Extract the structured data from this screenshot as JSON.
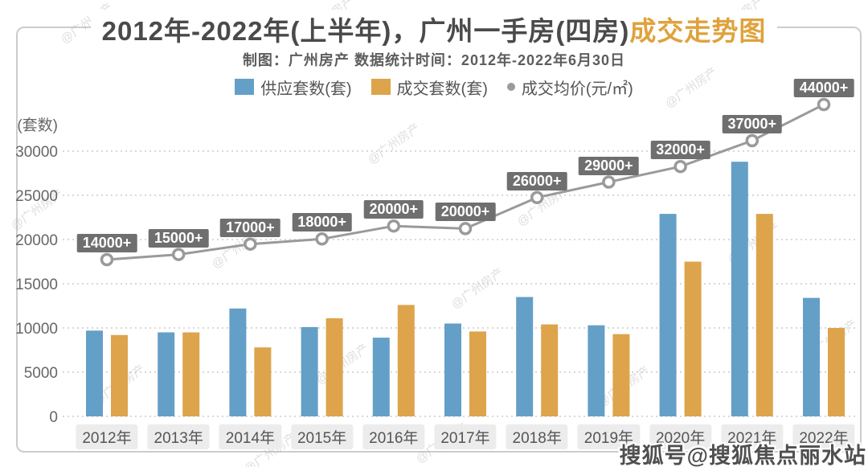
{
  "title": {
    "main": "2012年-2022年(上半年)，广州一手房(四房)",
    "accent": "成交走势图"
  },
  "subtitle": "制图：广州房产   数据统计时间：2012年-2022年6月30日",
  "legend": [
    {
      "label": "供应套数(套)",
      "type": "square",
      "color": "#649fc7"
    },
    {
      "label": "成交套数(套)",
      "type": "square",
      "color": "#dda44c"
    },
    {
      "label": "成交均价(元/㎡)",
      "type": "ring",
      "color": "#9a9a9a"
    }
  ],
  "y_axis": {
    "unit": "(套数)",
    "ticks": [
      30000,
      25000,
      20000,
      15000,
      10000,
      5000,
      0
    ]
  },
  "chart_data": {
    "type": "bar+line",
    "title": "2012年-2022年(上半年)，广州一手房(四房)成交走势图",
    "categories": [
      "2012年",
      "2013年",
      "2014年",
      "2015年",
      "2016年",
      "2017年",
      "2018年",
      "2019年",
      "2020年",
      "2021年",
      "2022年"
    ],
    "series": [
      {
        "name": "供应套数(套)",
        "type": "bar",
        "color": "#649fc7",
        "values": [
          9700,
          9500,
          12200,
          10100,
          8900,
          10500,
          13500,
          10300,
          22900,
          28800,
          13400
        ]
      },
      {
        "name": "成交套数(套)",
        "type": "bar",
        "color": "#dda44c",
        "values": [
          9200,
          9500,
          7800,
          11100,
          12600,
          9600,
          10400,
          9300,
          17500,
          22900,
          10000
        ]
      },
      {
        "name": "成交均价(元/㎡)",
        "type": "line",
        "color": "#9a9a9a",
        "labels": [
          "14000+",
          "15000+",
          "17000+",
          "18000+",
          "20000+",
          "20000+",
          "26000+",
          "29000+",
          "32000+",
          "37000+",
          "44000+"
        ],
        "values": [
          14000,
          15000,
          17000,
          18000,
          20000,
          20000,
          26000,
          29000,
          32000,
          37000,
          44000
        ],
        "plot_values": [
          14000,
          15000,
          17000,
          18000,
          20500,
          20000,
          26000,
          29000,
          32000,
          37000,
          44000
        ]
      }
    ],
    "ylabel": "(套数)",
    "ylim": [
      0,
      30000
    ],
    "grid": "dotted-horizontal",
    "legend_position": "top"
  },
  "watermark": {
    "diagonal": "@广州房产",
    "bottom_right": "搜狐号@搜狐焦点丽水站"
  },
  "colors": {
    "supply_bar": "#649fc7",
    "sold_bar": "#dda44c",
    "price_line": "#9a9a9a",
    "price_label_bg": "#6f6f6f",
    "title_text": "#4a4a4a",
    "title_accent": "#dfa23c",
    "axis_text": "#666666",
    "x_label_bg": "#ececec",
    "frame_border": "#cccccc",
    "grid_line": "#cccccc"
  }
}
